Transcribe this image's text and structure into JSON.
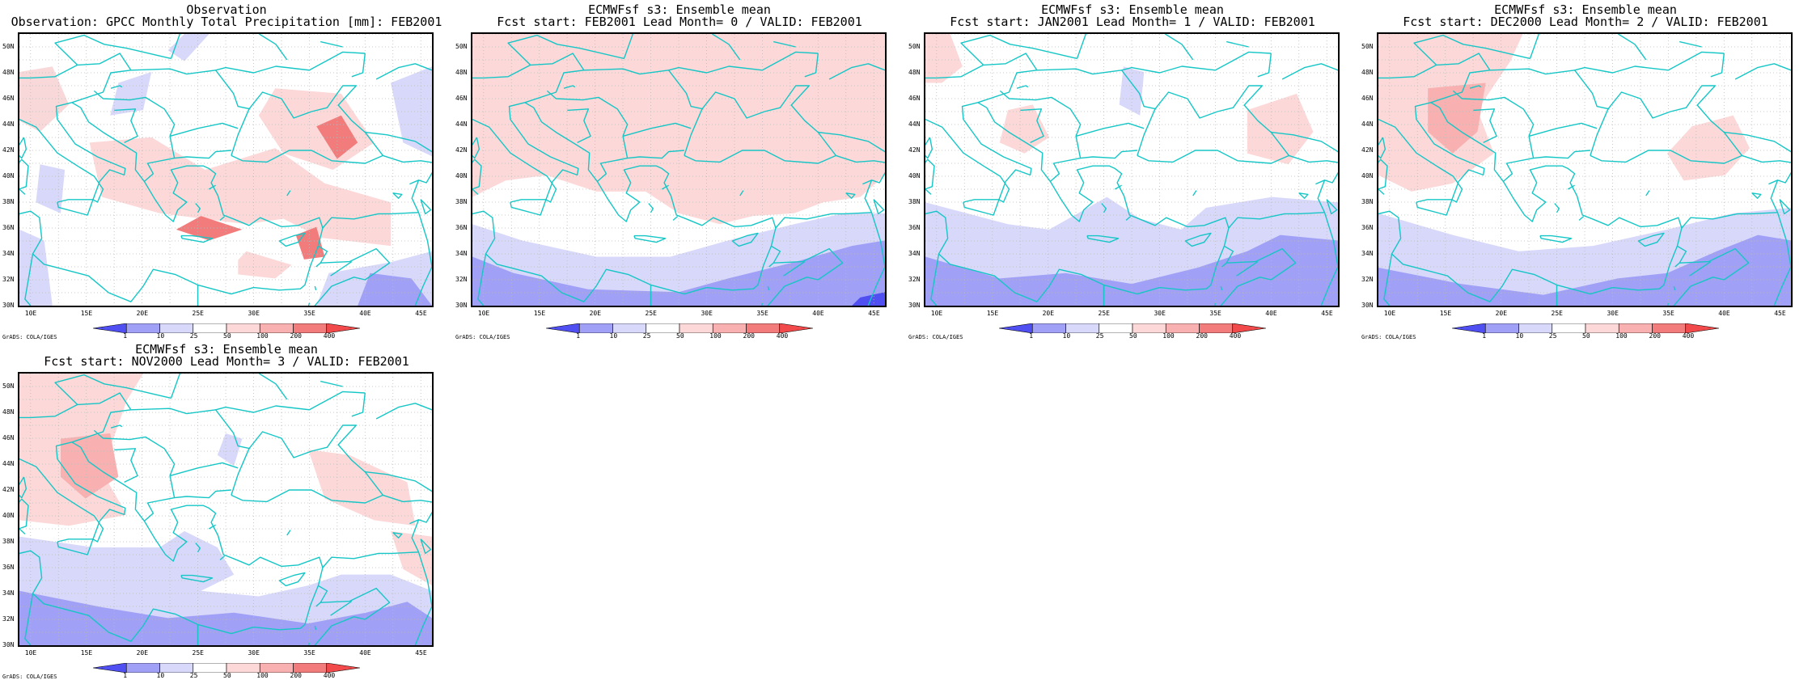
{
  "panels": [
    {
      "title1": "Observation",
      "title2": "Observation: GPCC Monthly Total Precipitation [mm]: FEB2001",
      "credit": "GrADS: COLA/IGES"
    },
    {
      "title1": "ECMWFsf s3: Ensemble mean",
      "title2": "Fcst start: FEB2001   Lead Month= 0 / VALID: FEB2001",
      "credit": "GrADS: COLA/IGES"
    },
    {
      "title1": "ECMWFsf s3: Ensemble mean",
      "title2": "Fcst start: JAN2001   Lead Month= 1 / VALID: FEB2001",
      "credit": "GrADS: COLA/IGES"
    },
    {
      "title1": "ECMWFsf s3: Ensemble mean",
      "title2": "Fcst start: DEC2000   Lead Month= 2 / VALID: FEB2001",
      "credit": "GrADS: COLA/IGES"
    },
    {
      "title1": "ECMWFsf s3: Ensemble mean",
      "title2": "Fcst start: NOV2000   Lead Month= 3 / VALID: FEB2001",
      "credit": "GrADS: COLA/IGES"
    }
  ],
  "lat_labels": [
    "50N",
    "48N",
    "46N",
    "44N",
    "42N",
    "40N",
    "38N",
    "36N",
    "34N",
    "32N",
    "30N"
  ],
  "lon_labels": [
    "10E",
    "15E",
    "20E",
    "25E",
    "30E",
    "35E",
    "40E",
    "45E"
  ],
  "colorbar": {
    "labels": [
      "1",
      "10",
      "25",
      "50",
      "100",
      "200",
      "400"
    ],
    "colors": [
      "#4f4ff2",
      "#a0a0f6",
      "#d8d8fa",
      "#ffffff",
      "#fcd8d8",
      "#f8b0b0",
      "#f27c7c",
      "#f24a4a"
    ]
  },
  "colors": {
    "coast": "#16c6c6",
    "grid": "#bbbbbb",
    "frame": "#000000"
  }
}
